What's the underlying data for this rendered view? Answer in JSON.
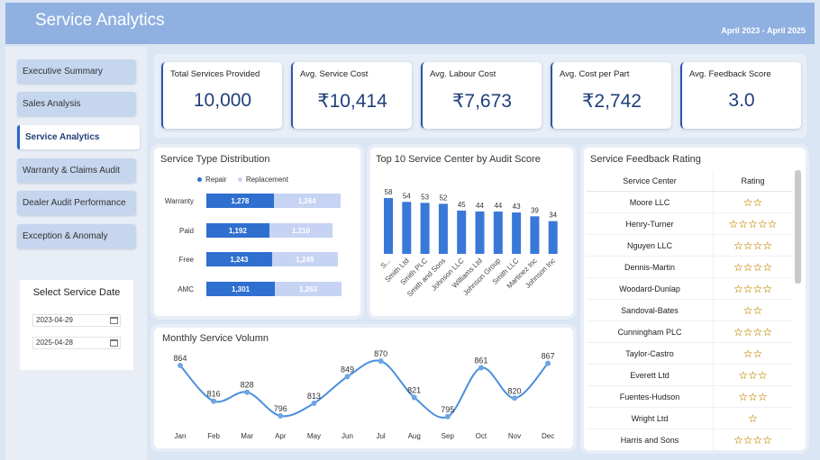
{
  "header": {
    "title": "Service Analytics",
    "date_range": "April 2023 - April 2025"
  },
  "sidebar": {
    "items": [
      {
        "label": "Executive Summary",
        "active": false
      },
      {
        "label": "Sales Analysis",
        "active": false
      },
      {
        "label": "Service Analytics",
        "active": true
      },
      {
        "label": "Warranty & Claims Audit",
        "active": false
      },
      {
        "label": "Dealer Audit Performance",
        "active": false
      },
      {
        "label": "Exception & Anomaly",
        "active": false
      }
    ],
    "date_filter": {
      "label": "Select Service Date",
      "start": "2023-04-29",
      "end": "2025-04-28"
    }
  },
  "kpis": [
    {
      "label": "Total Services Provided",
      "value": "10,000"
    },
    {
      "label": "Avg. Service Cost",
      "value": "₹10,414"
    },
    {
      "label": "Avg. Labour Cost",
      "value": "₹7,673"
    },
    {
      "label": "Avg. Cost per Part",
      "value": "₹2,742"
    },
    {
      "label": "Avg. Feedback Score",
      "value": "3.0"
    }
  ],
  "service_type": {
    "title": "Service Type Distribution",
    "chart_data": {
      "type": "bar",
      "orientation": "horizontal-stacked",
      "categories": [
        "Warranty",
        "Paid",
        "Free",
        "AMC"
      ],
      "series": [
        {
          "name": "Repair",
          "values": [
            1278,
            1192,
            1243,
            1301
          ],
          "labels": [
            "1,278",
            "1,192",
            "1,243",
            "1,301"
          ]
        },
        {
          "name": "Replacement",
          "values": [
            1264,
            1210,
            1249,
            1263
          ],
          "labels": [
            "1,264",
            "1,210",
            "1,249",
            "1,263"
          ]
        }
      ],
      "colors": [
        "#2f6fd0",
        "#c6d3f3"
      ],
      "legend_position": "top"
    }
  },
  "top_centers": {
    "title": "Top 10 Service Center by Audit Score",
    "chart_data": {
      "type": "bar",
      "categories": [
        "S...",
        "Smith Ltd",
        "Smith PLC",
        "Smith and Sons",
        "Johnson LLC",
        "Williams Ltd",
        "Johnson Group",
        "Smith LLC",
        "Martinez Inc",
        "Johnson Inc"
      ],
      "values": [
        58,
        54,
        53,
        52,
        45,
        44,
        44,
        43,
        39,
        34
      ],
      "color": "#3a78d8"
    }
  },
  "monthly": {
    "title": "Monthly Service Volumn",
    "chart_data": {
      "type": "line",
      "categories": [
        "Jan",
        "Feb",
        "Mar",
        "Apr",
        "May",
        "Jun",
        "Jul",
        "Aug",
        "Sep",
        "Oct",
        "Nov",
        "Dec"
      ],
      "values": [
        864,
        816,
        828,
        796,
        813,
        849,
        870,
        821,
        795,
        861,
        820,
        867
      ],
      "color": "#4a8fdc",
      "smooth": true
    }
  },
  "feedback": {
    "title": "Service Feedback Rating",
    "columns": [
      "Service Center",
      "Rating"
    ],
    "rows": [
      {
        "name": "Moore LLC",
        "rating": 2
      },
      {
        "name": "Henry-Turner",
        "rating": 5
      },
      {
        "name": "Nguyen LLC",
        "rating": 4
      },
      {
        "name": "Dennis-Martin",
        "rating": 4
      },
      {
        "name": "Woodard-Dunlap",
        "rating": 4
      },
      {
        "name": "Sandoval-Bates",
        "rating": 2
      },
      {
        "name": "Cunningham PLC",
        "rating": 4
      },
      {
        "name": "Taylor-Castro",
        "rating": 2
      },
      {
        "name": "Everett Ltd",
        "rating": 3
      },
      {
        "name": "Fuentes-Hudson",
        "rating": 3
      },
      {
        "name": "Wright Ltd",
        "rating": 1
      },
      {
        "name": "Harris and Sons",
        "rating": 4
      }
    ]
  }
}
